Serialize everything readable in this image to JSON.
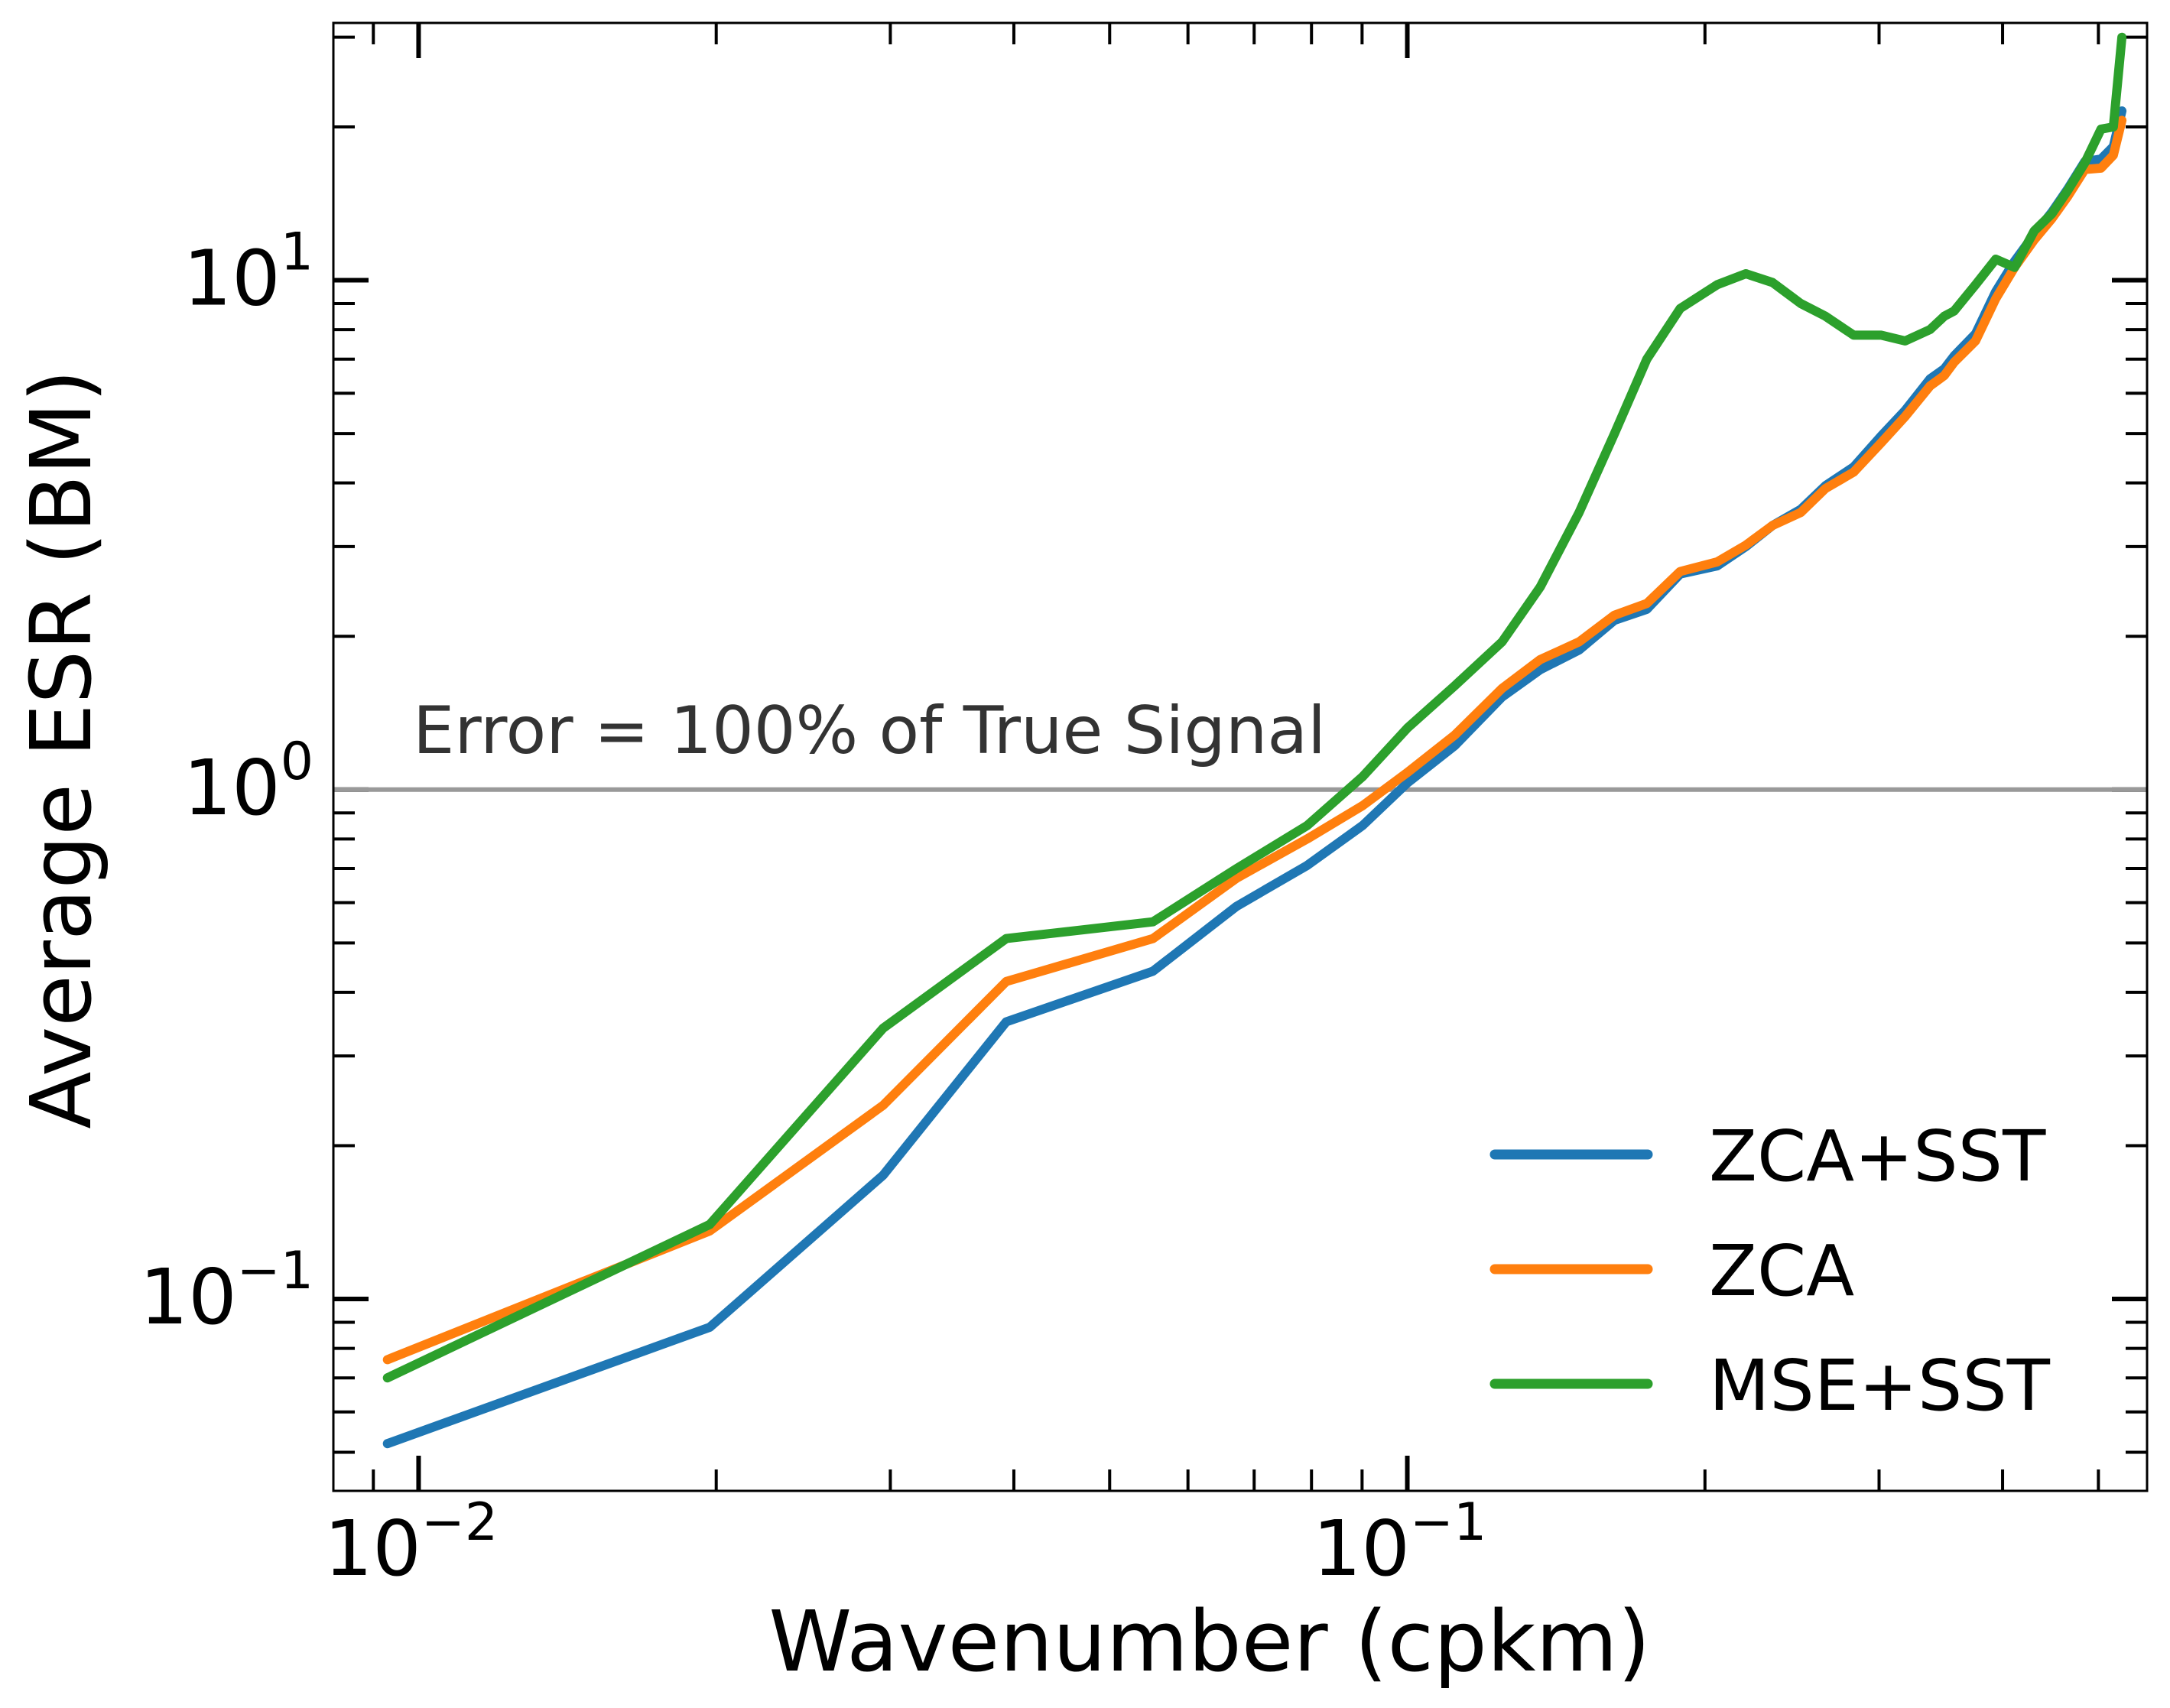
{
  "chart_data": {
    "type": "line",
    "xlabel": "Wavenumber (cpkm)",
    "ylabel": "Average ESR (BM)",
    "xscale": "log",
    "yscale": "log",
    "xlim": [
      0.0082,
      0.56
    ],
    "ylim": [
      0.042,
      32
    ],
    "grid": false,
    "legend_position": "lower-right",
    "xticks": [
      {
        "value": 0.01,
        "base": "10",
        "exp": "−2"
      },
      {
        "value": 0.1,
        "base": "10",
        "exp": "−1"
      }
    ],
    "yticks": [
      {
        "value": 0.1,
        "base": "10",
        "exp": "−1"
      },
      {
        "value": 1,
        "base": "10",
        "exp": "0"
      },
      {
        "value": 10,
        "base": "10",
        "exp": "1"
      }
    ],
    "reference_line": {
      "y": 1.0,
      "label": "Error = 100% of True Signal",
      "color": "#999999"
    },
    "series": [
      {
        "name": "ZCA+SST",
        "color": "#1f77b4",
        "x": [
          0.0093,
          0.0197,
          0.0295,
          0.0393,
          0.0553,
          0.0672,
          0.0792,
          0.0901,
          0.1,
          0.1117,
          0.1247,
          0.1363,
          0.1492,
          0.162,
          0.1747,
          0.1888,
          0.2058,
          0.22,
          0.2341,
          0.25,
          0.2648,
          0.2828,
          0.3016,
          0.3188,
          0.3378,
          0.3492,
          0.3573,
          0.3756,
          0.3937,
          0.4114,
          0.4306,
          0.4486,
          0.4655,
          0.4844,
          0.5031,
          0.5177,
          0.5281
        ],
        "y": [
          0.052,
          0.088,
          0.175,
          0.35,
          0.44,
          0.59,
          0.71,
          0.85,
          1.03,
          1.22,
          1.52,
          1.72,
          1.88,
          2.15,
          2.26,
          2.65,
          2.75,
          3.0,
          3.3,
          3.55,
          3.95,
          4.3,
          4.95,
          5.55,
          6.4,
          6.7,
          7.1,
          7.85,
          9.5,
          10.9,
          12.3,
          13.6,
          15.1,
          17.1,
          17.3,
          18.3,
          21.5
        ]
      },
      {
        "name": "ZCA",
        "color": "#ff7f0e",
        "x": [
          0.0093,
          0.0197,
          0.0295,
          0.0393,
          0.0553,
          0.0672,
          0.0792,
          0.0901,
          0.1,
          0.1117,
          0.1247,
          0.1363,
          0.1492,
          0.162,
          0.1747,
          0.1888,
          0.2058,
          0.22,
          0.2341,
          0.25,
          0.2648,
          0.2828,
          0.3016,
          0.3188,
          0.3378,
          0.3492,
          0.3573,
          0.3756,
          0.3937,
          0.4114,
          0.4306,
          0.4486,
          0.4655,
          0.4844,
          0.5031,
          0.5177,
          0.5281
        ],
        "y": [
          0.076,
          0.136,
          0.24,
          0.42,
          0.51,
          0.67,
          0.8,
          0.93,
          1.08,
          1.28,
          1.58,
          1.8,
          1.95,
          2.2,
          2.32,
          2.68,
          2.8,
          3.02,
          3.3,
          3.5,
          3.9,
          4.2,
          4.8,
          5.4,
          6.2,
          6.5,
          6.9,
          7.6,
          9.2,
          10.6,
          12.0,
          13.2,
          14.6,
          16.5,
          16.6,
          17.6,
          20.6
        ]
      },
      {
        "name": "MSE+SST",
        "color": "#2ca02c",
        "x": [
          0.0093,
          0.0197,
          0.0295,
          0.0393,
          0.0553,
          0.0672,
          0.0792,
          0.0901,
          0.1,
          0.1117,
          0.1247,
          0.1363,
          0.1492,
          0.162,
          0.1747,
          0.1888,
          0.2058,
          0.22,
          0.2341,
          0.25,
          0.2648,
          0.2828,
          0.3016,
          0.3188,
          0.3378,
          0.3492,
          0.3573,
          0.3756,
          0.3937,
          0.4114,
          0.4306,
          0.4486,
          0.4655,
          0.4844,
          0.5031,
          0.5177,
          0.5281
        ],
        "y": [
          0.07,
          0.14,
          0.34,
          0.51,
          0.55,
          0.7,
          0.85,
          1.06,
          1.32,
          1.6,
          1.95,
          2.5,
          3.5,
          5.0,
          7.0,
          8.8,
          9.8,
          10.3,
          9.9,
          9.0,
          8.5,
          7.8,
          7.8,
          7.6,
          8.0,
          8.5,
          8.7,
          9.8,
          11.0,
          10.6,
          12.5,
          13.5,
          15.0,
          17.0,
          19.8,
          20.0,
          30.0
        ]
      }
    ]
  }
}
